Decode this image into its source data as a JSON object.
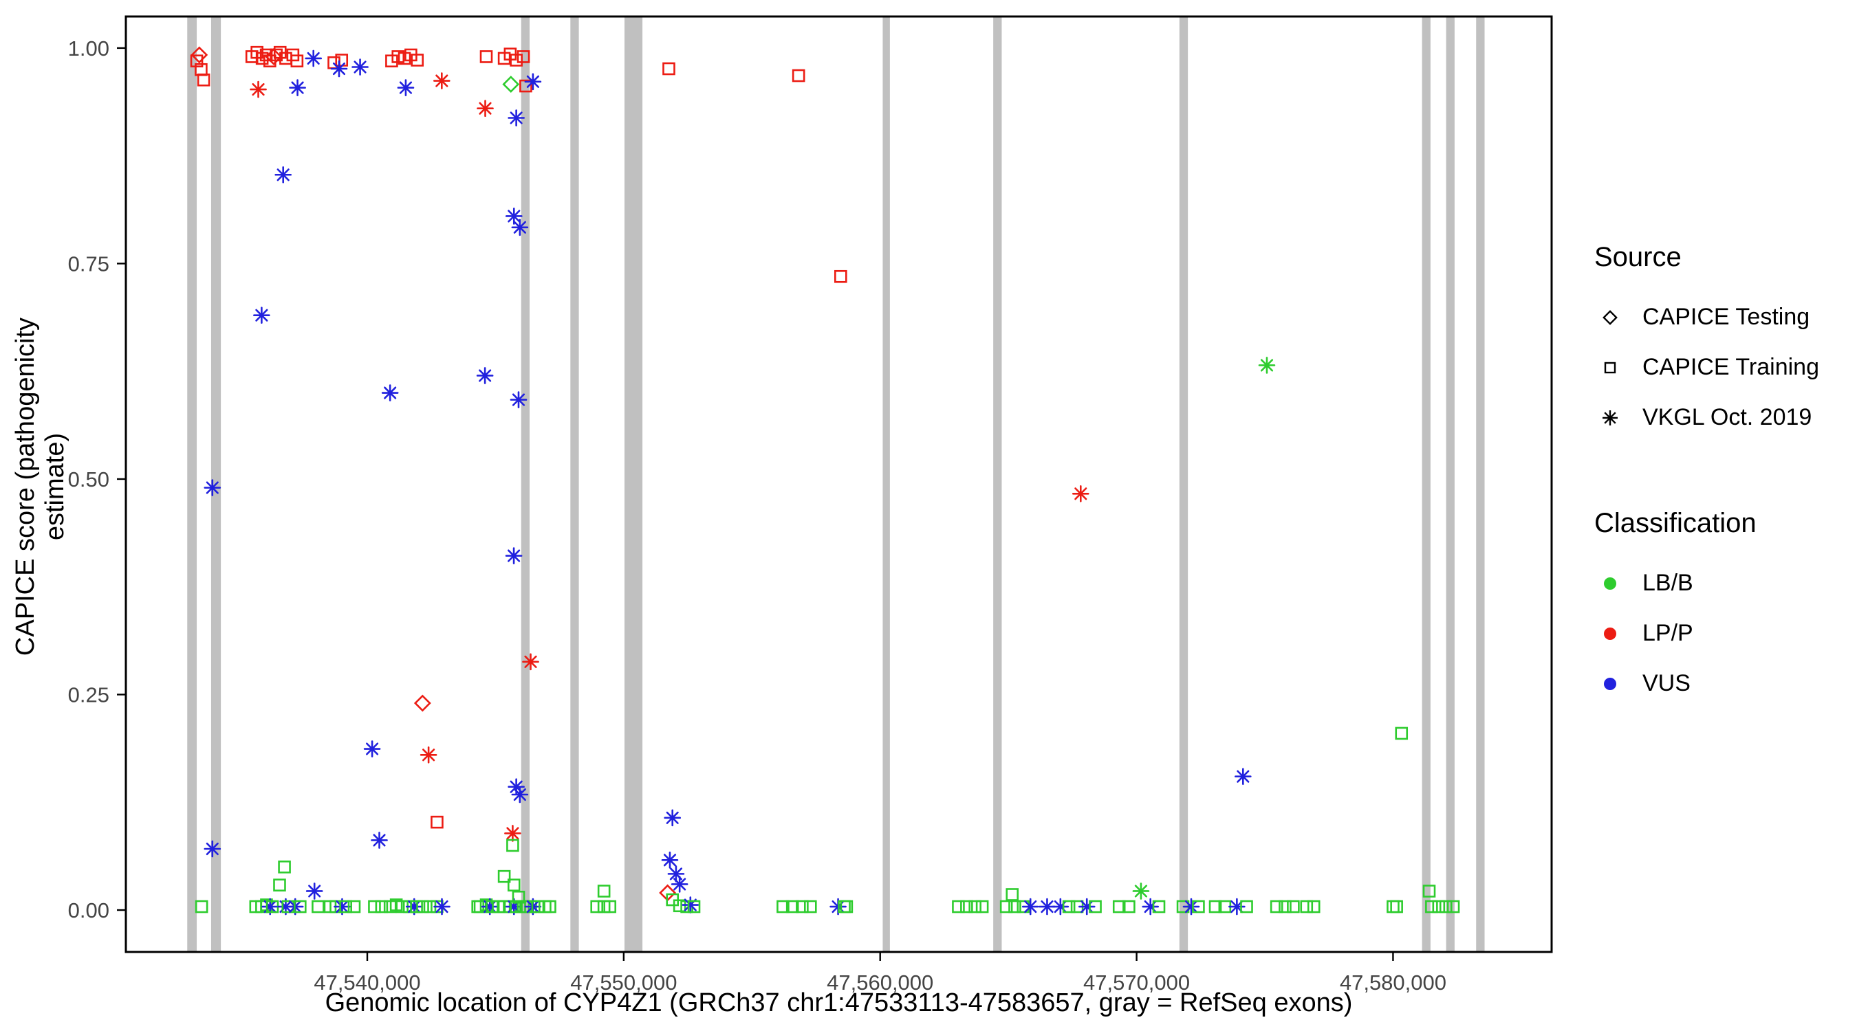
{
  "figure": {
    "background": "#ffffff",
    "panel_border_color": "#000000",
    "tick_label_color": "#444444"
  },
  "legend": {
    "source": {
      "title": "Source",
      "items": [
        {
          "label": "CAPICE Testing",
          "marker": "diamond"
        },
        {
          "label": "CAPICE Training",
          "marker": "square"
        },
        {
          "label": "VKGL Oct. 2019",
          "marker": "asterisk"
        }
      ]
    },
    "classification": {
      "title": "Classification",
      "items": [
        {
          "label": "LB/B",
          "color": "#2ecc2e"
        },
        {
          "label": "LP/P",
          "color": "#ec1c13"
        },
        {
          "label": "VUS",
          "color": "#2121de"
        }
      ]
    }
  },
  "chart_data": {
    "type": "scatter",
    "title": "",
    "xlabel": "Genomic location of CYP4Z1 (GRCh37 chr1:47533113-47583657, gray = RefSeq exons)",
    "ylabel": "CAPICE score (pathogenicity estimate)",
    "x_domain": [
      47530586,
      47586184
    ],
    "y_domain": [
      -0.0486,
      1.0366
    ],
    "ylim": [
      0,
      1
    ],
    "grid": false,
    "legend_position": "right",
    "x_ticks": [
      {
        "value": 47540000,
        "label": "47,540,000"
      },
      {
        "value": 47550000,
        "label": "47,550,000"
      },
      {
        "value": 47560000,
        "label": "47,560,000"
      },
      {
        "value": 47570000,
        "label": "47,570,000"
      },
      {
        "value": 47580000,
        "label": "47,580,000"
      }
    ],
    "y_ticks": [
      {
        "value": 0.0,
        "label": "0.00"
      },
      {
        "value": 0.25,
        "label": "0.25"
      },
      {
        "value": 0.5,
        "label": "0.50"
      },
      {
        "value": 0.75,
        "label": "0.75"
      },
      {
        "value": 1.0,
        "label": "1.00"
      }
    ],
    "exon_color": "#c0c0c0",
    "class_colors": {
      "LB/B": "#2ecc2e",
      "LP/P": "#ec1c13",
      "VUS": "#2121de"
    },
    "source_shapes": {
      "testing": "diamond",
      "training": "square",
      "vkgl": "asterisk"
    },
    "exons": [
      [
        47532980,
        47533350
      ],
      [
        47533910,
        47534290
      ],
      [
        47546000,
        47546330
      ],
      [
        47547920,
        47548250
      ],
      [
        47550030,
        47550730
      ],
      [
        47560100,
        47560380
      ],
      [
        47564410,
        47564740
      ],
      [
        47571670,
        47572000
      ],
      [
        47581130,
        47581460
      ],
      [
        47582070,
        47582400
      ],
      [
        47583240,
        47583570
      ]
    ],
    "points": [
      [
        47533350,
        0.985,
        "training",
        "LP/P"
      ],
      [
        47533450,
        0.992,
        "testing",
        "LP/P"
      ],
      [
        47533520,
        0.975,
        "training",
        "LP/P"
      ],
      [
        47533620,
        0.963,
        "training",
        "LP/P"
      ],
      [
        47535500,
        0.99,
        "training",
        "LP/P"
      ],
      [
        47535700,
        0.995,
        "training",
        "LP/P"
      ],
      [
        47535900,
        0.988,
        "training",
        "LP/P"
      ],
      [
        47536060,
        0.992,
        "training",
        "LP/P"
      ],
      [
        47536200,
        0.985,
        "training",
        "LP/P"
      ],
      [
        47536350,
        0.99,
        "testing",
        "LP/P"
      ],
      [
        47536450,
        0.992,
        "training",
        "LP/P"
      ],
      [
        47536600,
        0.995,
        "training",
        "LP/P"
      ],
      [
        47536820,
        0.988,
        "training",
        "LP/P"
      ],
      [
        47537100,
        0.992,
        "training",
        "LP/P"
      ],
      [
        47537260,
        0.985,
        "training",
        "LP/P"
      ],
      [
        47535750,
        0.952,
        "vkgl",
        "LP/P"
      ],
      [
        47537280,
        0.954,
        "vkgl",
        "VUS"
      ],
      [
        47537900,
        0.988,
        "vkgl",
        "VUS"
      ],
      [
        47538700,
        0.983,
        "training",
        "LP/P"
      ],
      [
        47539000,
        0.986,
        "training",
        "LP/P"
      ],
      [
        47538900,
        0.976,
        "vkgl",
        "VUS"
      ],
      [
        47539720,
        0.978,
        "vkgl",
        "VUS"
      ],
      [
        47540950,
        0.985,
        "training",
        "LP/P"
      ],
      [
        47541200,
        0.99,
        "training",
        "LP/P"
      ],
      [
        47541450,
        0.988,
        "training",
        "LP/P"
      ],
      [
        47541700,
        0.992,
        "training",
        "LP/P"
      ],
      [
        47541950,
        0.986,
        "training",
        "LP/P"
      ],
      [
        47541500,
        0.954,
        "vkgl",
        "VUS"
      ],
      [
        47542905,
        0.962,
        "vkgl",
        "LP/P"
      ],
      [
        47544640,
        0.99,
        "training",
        "LP/P"
      ],
      [
        47544600,
        0.93,
        "vkgl",
        "LP/P"
      ],
      [
        47545340,
        0.988,
        "training",
        "LP/P"
      ],
      [
        47545575,
        0.993,
        "training",
        "LP/P"
      ],
      [
        47545810,
        0.986,
        "training",
        "LP/P"
      ],
      [
        47546090,
        0.99,
        "training",
        "LP/P"
      ],
      [
        47545600,
        0.958,
        "testing",
        "LB/B"
      ],
      [
        47546180,
        0.956,
        "training",
        "LP/P"
      ],
      [
        47546460,
        0.961,
        "vkgl",
        "VUS"
      ],
      [
        47545810,
        0.919,
        "vkgl",
        "VUS"
      ],
      [
        47551760,
        0.976,
        "training",
        "LP/P"
      ],
      [
        47556820,
        0.968,
        "training",
        "LP/P"
      ],
      [
        47536720,
        0.853,
        "vkgl",
        "VUS"
      ],
      [
        47545720,
        0.805,
        "vkgl",
        "VUS"
      ],
      [
        47545950,
        0.792,
        "vkgl",
        "VUS"
      ],
      [
        47535880,
        0.69,
        "vkgl",
        "VUS"
      ],
      [
        47540890,
        0.6,
        "vkgl",
        "VUS"
      ],
      [
        47544590,
        0.62,
        "vkgl",
        "VUS"
      ],
      [
        47545900,
        0.592,
        "vkgl",
        "VUS"
      ],
      [
        47558460,
        0.735,
        "training",
        "LP/P"
      ],
      [
        47567820,
        0.483,
        "vkgl",
        "LP/P"
      ],
      [
        47575080,
        0.632,
        "vkgl",
        "LB/B"
      ],
      [
        47533960,
        0.49,
        "vkgl",
        "VUS"
      ],
      [
        47545715,
        0.411,
        "vkgl",
        "VUS"
      ],
      [
        47546370,
        0.288,
        "vkgl",
        "LP/P"
      ],
      [
        47542155,
        0.24,
        "testing",
        "LP/P"
      ],
      [
        47540190,
        0.187,
        "vkgl",
        "VUS"
      ],
      [
        47542390,
        0.18,
        "vkgl",
        "LP/P"
      ],
      [
        47574150,
        0.155,
        "vkgl",
        "VUS"
      ],
      [
        47580330,
        0.205,
        "training",
        "LB/B"
      ],
      [
        47545810,
        0.143,
        "vkgl",
        "VUS"
      ],
      [
        47545950,
        0.134,
        "vkgl",
        "VUS"
      ],
      [
        47542720,
        0.102,
        "training",
        "LP/P"
      ],
      [
        47551900,
        0.107,
        "vkgl",
        "VUS"
      ],
      [
        47545670,
        0.089,
        "vkgl",
        "LP/P"
      ],
      [
        47540470,
        0.081,
        "vkgl",
        "VUS"
      ],
      [
        47545670,
        0.075,
        "training",
        "LB/B"
      ],
      [
        47533960,
        0.071,
        "vkgl",
        "VUS"
      ],
      [
        47551800,
        0.058,
        "vkgl",
        "VUS"
      ],
      [
        47552040,
        0.042,
        "vkgl",
        "VUS"
      ],
      [
        47552180,
        0.03,
        "vkgl",
        "VUS"
      ],
      [
        47551710,
        0.02,
        "testing",
        "LP/P"
      ],
      [
        47551900,
        0.012,
        "training",
        "LB/B"
      ],
      [
        47552180,
        0.005,
        "training",
        "LB/B"
      ],
      [
        47552460,
        0.004,
        "training",
        "LB/B"
      ],
      [
        47552600,
        0.006,
        "vkgl",
        "VUS"
      ],
      [
        47552740,
        0.004,
        "training",
        "LB/B"
      ],
      [
        47533540,
        0.004,
        "training",
        "LB/B"
      ],
      [
        47535650,
        0.004,
        "training",
        "LB/B"
      ],
      [
        47535880,
        0.004,
        "training",
        "LB/B"
      ],
      [
        47536070,
        0.006,
        "training",
        "LB/B"
      ],
      [
        47536210,
        0.004,
        "vkgl",
        "VUS"
      ],
      [
        47536300,
        0.004,
        "training",
        "LB/B"
      ],
      [
        47536580,
        0.029,
        "training",
        "LB/B"
      ],
      [
        47536770,
        0.05,
        "training",
        "LB/B"
      ],
      [
        47536820,
        0.004,
        "vkgl",
        "VUS"
      ],
      [
        47536910,
        0.004,
        "training",
        "LB/B"
      ],
      [
        47537190,
        0.004,
        "vkgl",
        "VUS"
      ],
      [
        47537380,
        0.004,
        "training",
        "LB/B"
      ],
      [
        47537940,
        0.022,
        "vkgl",
        "VUS"
      ],
      [
        47538080,
        0.004,
        "training",
        "LB/B"
      ],
      [
        47538550,
        0.004,
        "training",
        "LB/B"
      ],
      [
        47538780,
        0.004,
        "training",
        "LB/B"
      ],
      [
        47539020,
        0.004,
        "vkgl",
        "VUS"
      ],
      [
        47539160,
        0.004,
        "training",
        "LB/B"
      ],
      [
        47539490,
        0.004,
        "training",
        "LB/B"
      ],
      [
        47540280,
        0.004,
        "training",
        "LB/B"
      ],
      [
        47540560,
        0.004,
        "training",
        "LB/B"
      ],
      [
        47540890,
        0.004,
        "training",
        "LB/B"
      ],
      [
        47541130,
        0.006,
        "training",
        "LB/B"
      ],
      [
        47541360,
        0.004,
        "training",
        "LB/B"
      ],
      [
        47541640,
        0.004,
        "training",
        "LB/B"
      ],
      [
        47541830,
        0.004,
        "vkgl",
        "VUS"
      ],
      [
        47541920,
        0.004,
        "training",
        "LB/B"
      ],
      [
        47542160,
        0.004,
        "training",
        "LB/B"
      ],
      [
        47542440,
        0.004,
        "training",
        "LB/B"
      ],
      [
        47542720,
        0.004,
        "training",
        "LB/B"
      ],
      [
        47542910,
        0.004,
        "vkgl",
        "VUS"
      ],
      [
        47544310,
        0.004,
        "training",
        "LB/B"
      ],
      [
        47544400,
        0.004,
        "training",
        "LB/B"
      ],
      [
        47544640,
        0.006,
        "training",
        "LB/B"
      ],
      [
        47544780,
        0.004,
        "vkgl",
        "VUS"
      ],
      [
        47544870,
        0.004,
        "training",
        "LB/B"
      ],
      [
        47545110,
        0.004,
        "training",
        "LB/B"
      ],
      [
        47545340,
        0.039,
        "training",
        "LB/B"
      ],
      [
        47545340,
        0.004,
        "training",
        "LB/B"
      ],
      [
        47545580,
        0.004,
        "training",
        "LB/B"
      ],
      [
        47545720,
        0.029,
        "training",
        "LB/B"
      ],
      [
        47545720,
        0.004,
        "vkgl",
        "VUS"
      ],
      [
        47545810,
        0.004,
        "training",
        "LB/B"
      ],
      [
        47545900,
        0.015,
        "training",
        "LB/B"
      ],
      [
        47546090,
        0.004,
        "training",
        "LB/B"
      ],
      [
        47546180,
        0.004,
        "training",
        "LB/B"
      ],
      [
        47546370,
        0.004,
        "training",
        "LB/B"
      ],
      [
        47546460,
        0.004,
        "vkgl",
        "VUS"
      ],
      [
        47546650,
        0.004,
        "training",
        "LB/B"
      ],
      [
        47546930,
        0.004,
        "training",
        "LB/B"
      ],
      [
        47547120,
        0.004,
        "training",
        "LB/B"
      ],
      [
        47548950,
        0.004,
        "training",
        "LB/B"
      ],
      [
        47549230,
        0.022,
        "training",
        "LB/B"
      ],
      [
        47549230,
        0.004,
        "training",
        "LB/B"
      ],
      [
        47549460,
        0.004,
        "training",
        "LB/B"
      ],
      [
        47556210,
        0.004,
        "training",
        "LB/B"
      ],
      [
        47556580,
        0.004,
        "training",
        "LB/B"
      ],
      [
        47556960,
        0.004,
        "training",
        "LB/B"
      ],
      [
        47557280,
        0.004,
        "training",
        "LB/B"
      ],
      [
        47558360,
        0.004,
        "vkgl",
        "VUS"
      ],
      [
        47558600,
        0.004,
        "training",
        "LB/B"
      ],
      [
        47558690,
        0.004,
        "training",
        "LB/B"
      ],
      [
        47563050,
        0.004,
        "training",
        "LB/B"
      ],
      [
        47563370,
        0.004,
        "training",
        "LB/B"
      ],
      [
        47563700,
        0.004,
        "training",
        "LB/B"
      ],
      [
        47563980,
        0.004,
        "training",
        "LB/B"
      ],
      [
        47564920,
        0.004,
        "training",
        "LB/B"
      ],
      [
        47565150,
        0.018,
        "training",
        "LB/B"
      ],
      [
        47565250,
        0.004,
        "training",
        "LB/B"
      ],
      [
        47565580,
        0.004,
        "training",
        "LB/B"
      ],
      [
        47565860,
        0.004,
        "vkgl",
        "VUS"
      ],
      [
        47566510,
        0.004,
        "vkgl",
        "VUS"
      ],
      [
        47567030,
        0.004,
        "vkgl",
        "VUS"
      ],
      [
        47567360,
        0.004,
        "training",
        "LB/B"
      ],
      [
        47567680,
        0.004,
        "training",
        "LB/B"
      ],
      [
        47568060,
        0.004,
        "vkgl",
        "VUS"
      ],
      [
        47568390,
        0.004,
        "training",
        "LB/B"
      ],
      [
        47569320,
        0.004,
        "training",
        "LB/B"
      ],
      [
        47569700,
        0.004,
        "training",
        "LB/B"
      ],
      [
        47570170,
        0.022,
        "vkgl",
        "LB/B"
      ],
      [
        47570540,
        0.004,
        "vkgl",
        "VUS"
      ],
      [
        47570870,
        0.004,
        "training",
        "LB/B"
      ],
      [
        47571810,
        0.004,
        "training",
        "LB/B"
      ],
      [
        47572130,
        0.004,
        "vkgl",
        "VUS"
      ],
      [
        47572410,
        0.004,
        "training",
        "LB/B"
      ],
      [
        47573070,
        0.004,
        "training",
        "LB/B"
      ],
      [
        47573440,
        0.004,
        "training",
        "LB/B"
      ],
      [
        47573910,
        0.004,
        "vkgl",
        "VUS"
      ],
      [
        47574290,
        0.004,
        "training",
        "LB/B"
      ],
      [
        47575460,
        0.004,
        "training",
        "LB/B"
      ],
      [
        47575790,
        0.004,
        "training",
        "LB/B"
      ],
      [
        47576110,
        0.004,
        "training",
        "LB/B"
      ],
      [
        47576630,
        0.004,
        "training",
        "LB/B"
      ],
      [
        47576910,
        0.004,
        "training",
        "LB/B"
      ],
      [
        47580000,
        0.004,
        "training",
        "LB/B"
      ],
      [
        47580140,
        0.004,
        "training",
        "LB/B"
      ],
      [
        47581410,
        0.022,
        "training",
        "LB/B"
      ],
      [
        47581500,
        0.004,
        "training",
        "LB/B"
      ],
      [
        47581780,
        0.004,
        "training",
        "LB/B"
      ],
      [
        47582060,
        0.004,
        "training",
        "LB/B"
      ],
      [
        47582350,
        0.004,
        "training",
        "LB/B"
      ]
    ]
  }
}
